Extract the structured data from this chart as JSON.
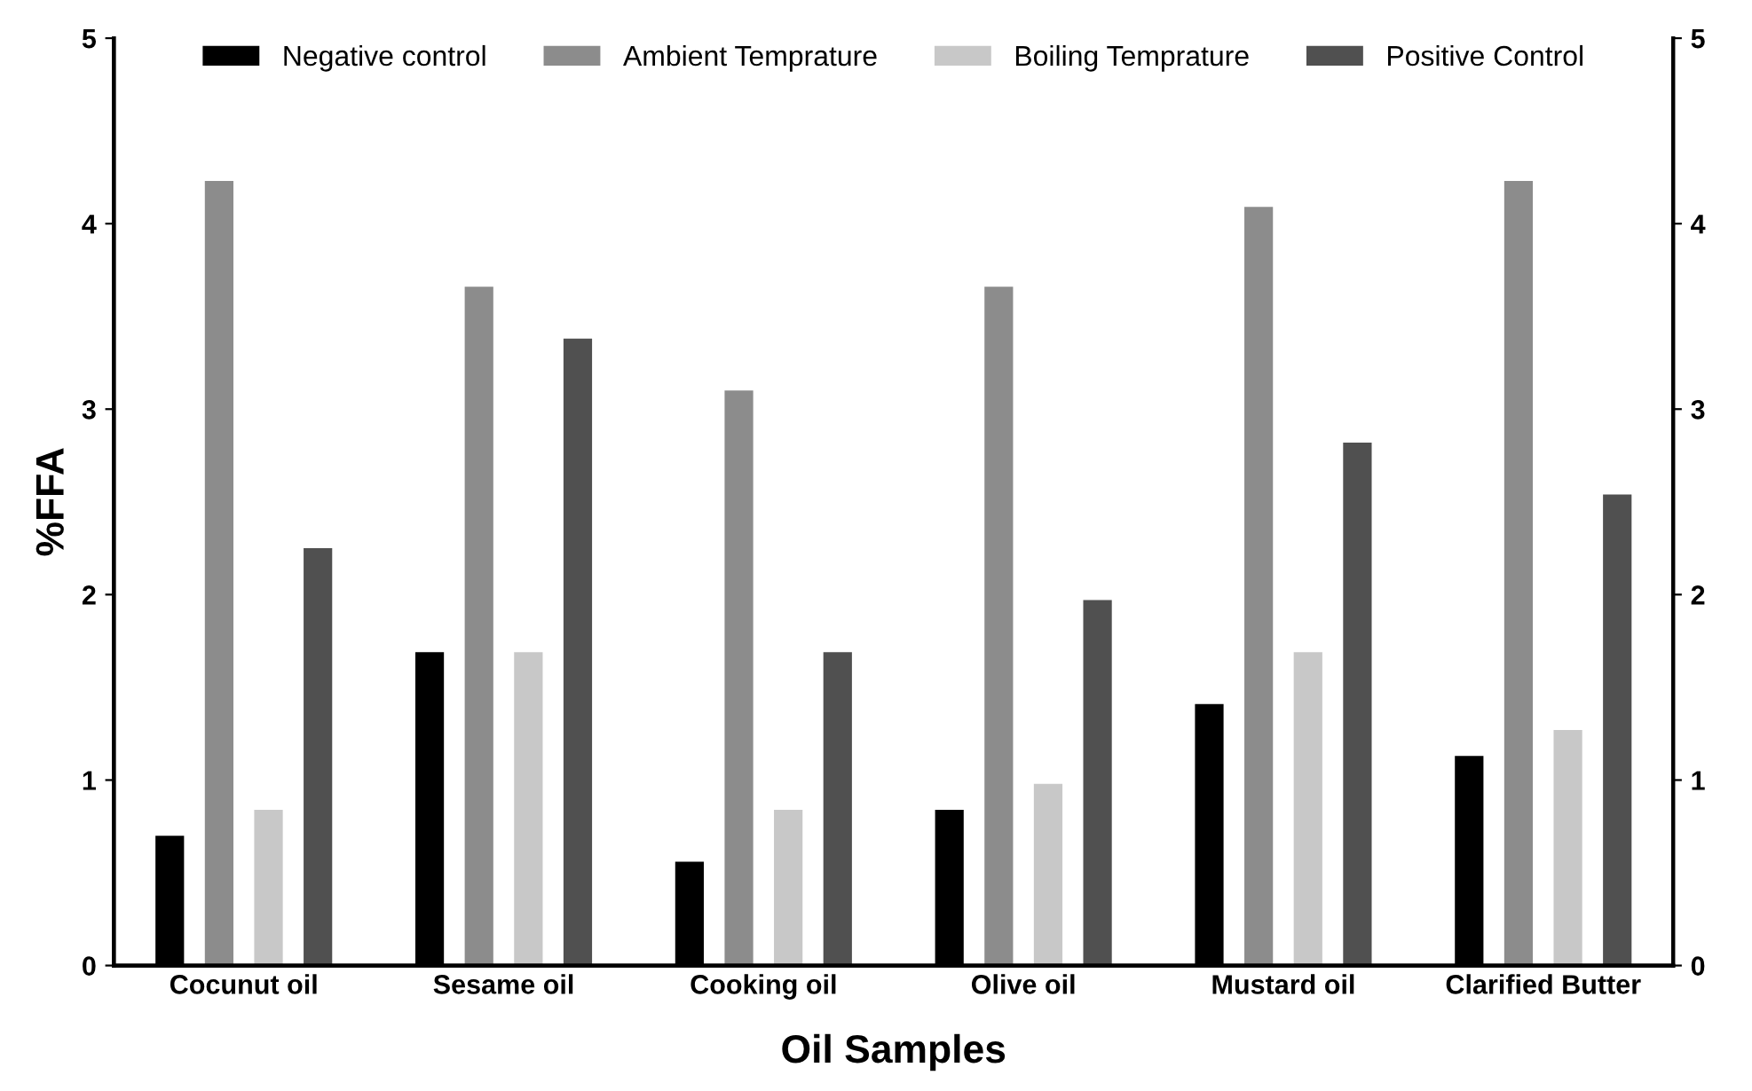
{
  "chart_data": {
    "type": "bar",
    "xlabel": "Oil Samples",
    "ylabel": "%FFA",
    "categories": [
      "Cocunut oil",
      "Sesame oil",
      "Cooking oil",
      "Olive oil",
      "Mustard oil",
      "Clarified Butter"
    ],
    "series": [
      {
        "name": "Negative control",
        "color": "#000000",
        "values": [
          0.7,
          1.69,
          0.56,
          0.84,
          1.41,
          1.13
        ]
      },
      {
        "name": "Ambient Temprature",
        "color": "#8c8c8c",
        "values": [
          4.23,
          3.66,
          3.1,
          3.66,
          4.09,
          4.23
        ]
      },
      {
        "name": "Boiling Temprature",
        "color": "#c8c8c8",
        "values": [
          0.84,
          1.69,
          0.84,
          0.98,
          1.69,
          1.27
        ]
      },
      {
        "name": "Positive Control",
        "color": "#505050",
        "values": [
          2.25,
          3.38,
          1.69,
          1.97,
          2.82,
          2.54
        ]
      }
    ],
    "ylim": [
      0,
      5
    ],
    "yticks": [
      0,
      1,
      2,
      3,
      4,
      5
    ],
    "y2lim": [
      0,
      5
    ],
    "y2ticks": [
      0,
      1,
      2,
      3,
      4,
      5
    ],
    "grid": false,
    "legend": "top"
  }
}
